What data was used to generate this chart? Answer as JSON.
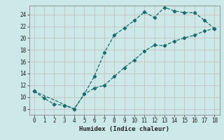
{
  "title": "",
  "xlabel": "Humidex (Indice chaleur)",
  "background_color": "#cce8e8",
  "line_color": "#1a6b6b",
  "xlim": [
    -0.5,
    18.5
  ],
  "ylim": [
    7.0,
    25.5
  ],
  "xticks": [
    0,
    1,
    2,
    3,
    4,
    5,
    6,
    7,
    8,
    9,
    10,
    11,
    12,
    13,
    14,
    15,
    16,
    17,
    18
  ],
  "yticks": [
    8,
    10,
    12,
    14,
    16,
    18,
    20,
    22,
    24
  ],
  "x_upper": [
    0,
    1,
    2,
    3,
    4,
    5,
    6,
    7,
    8,
    9,
    10,
    11,
    12,
    13,
    14,
    15,
    16,
    17,
    18
  ],
  "y_upper": [
    11.0,
    9.8,
    8.8,
    8.6,
    8.0,
    10.5,
    13.5,
    17.5,
    20.5,
    21.7,
    23.0,
    24.4,
    23.5,
    25.2,
    24.6,
    24.3,
    24.3,
    23.0,
    21.6
  ],
  "x_lower": [
    0,
    4,
    5,
    6,
    7,
    8,
    9,
    10,
    11,
    12,
    13,
    14,
    15,
    16,
    17,
    18
  ],
  "y_lower": [
    11.0,
    8.0,
    10.5,
    11.5,
    12.0,
    13.5,
    15.0,
    16.3,
    17.8,
    18.8,
    18.7,
    19.5,
    20.0,
    20.5,
    21.2,
    21.6
  ]
}
